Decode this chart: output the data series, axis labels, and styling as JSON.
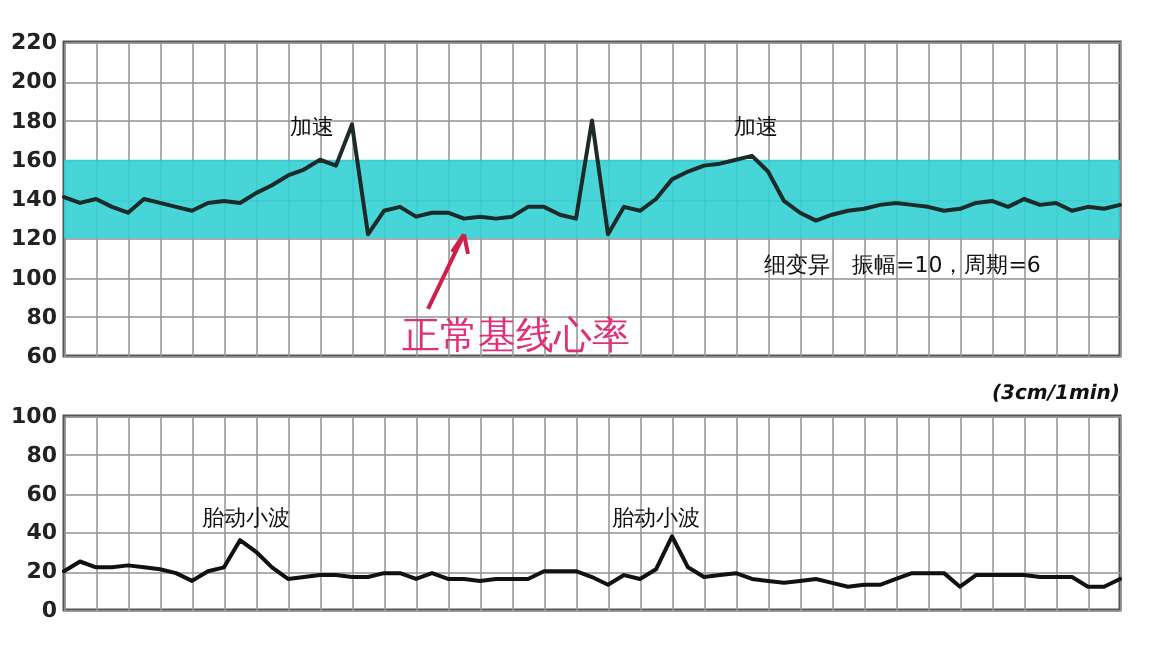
{
  "chart_data": [
    {
      "type": "line",
      "categories": [
        null,
        null,
        null,
        null,
        null,
        null,
        null,
        null,
        null,
        null,
        null,
        null,
        null,
        null,
        null,
        null,
        null,
        null,
        null,
        null,
        null,
        null,
        null,
        null,
        null,
        null,
        null,
        null,
        null,
        null,
        null,
        null,
        null,
        null,
        null,
        null,
        null,
        null,
        null,
        null,
        null,
        null,
        null,
        null,
        null,
        null,
        null,
        null,
        null,
        null,
        null,
        null,
        null,
        null,
        null,
        null,
        null,
        null,
        null,
        null,
        null,
        null,
        null,
        null,
        null,
        null,
        null
      ],
      "series": [
        {
          "color": "#1c2a2a",
          "values": [
            141,
            138,
            140,
            136,
            133,
            140,
            138,
            136,
            134,
            138,
            139,
            138,
            143,
            147,
            152,
            155,
            160,
            157,
            178,
            122,
            134,
            136,
            131,
            133,
            133,
            130,
            131,
            130,
            131,
            136,
            136,
            132,
            130,
            180,
            122,
            136,
            134,
            140,
            150,
            154,
            157,
            158,
            160,
            162,
            154,
            139,
            133,
            129,
            132,
            134,
            135,
            137,
            138,
            137,
            136,
            134,
            135,
            138,
            139,
            136,
            140,
            137,
            138,
            134,
            136,
            135,
            137
          ]
        }
      ],
      "ylim": [
        60,
        220
      ],
      "yticks": [
        60,
        80,
        100,
        120,
        140,
        160,
        180,
        200,
        220
      ],
      "grid": true,
      "tick_labels": "y",
      "bands": [
        {
          "axis": "y",
          "from": 120,
          "to": 160,
          "color": "#33d0d4"
        }
      ],
      "annotations": [
        "加速",
        "加速",
        "正常基线心率",
        "细变异　振幅=10，周期=6"
      ]
    },
    {
      "type": "line",
      "categories": [
        null,
        null,
        null,
        null,
        null,
        null,
        null,
        null,
        null,
        null,
        null,
        null,
        null,
        null,
        null,
        null,
        null,
        null,
        null,
        null,
        null,
        null,
        null,
        null,
        null,
        null,
        null,
        null,
        null,
        null,
        null,
        null,
        null,
        null,
        null,
        null,
        null,
        null,
        null,
        null,
        null,
        null,
        null,
        null,
        null,
        null,
        null,
        null,
        null,
        null,
        null,
        null,
        null,
        null,
        null,
        null,
        null,
        null,
        null,
        null,
        null,
        null,
        null,
        null,
        null,
        null,
        null
      ],
      "series": [
        {
          "color": "#111111",
          "values": [
            20,
            25,
            22,
            22,
            23,
            22,
            21,
            19,
            15,
            20,
            22,
            36,
            30,
            22,
            16,
            17,
            18,
            18,
            17,
            17,
            19,
            19,
            16,
            19,
            16,
            16,
            15,
            16,
            16,
            16,
            20,
            20,
            20,
            17,
            13,
            18,
            16,
            21,
            38,
            22,
            17,
            18,
            19,
            16,
            15,
            14,
            15,
            16,
            14,
            12,
            13,
            13,
            16,
            19,
            19,
            19,
            12,
            18,
            18,
            18,
            18,
            17,
            17,
            17,
            12,
            12,
            16
          ]
        }
      ],
      "ylim": [
        0,
        100
      ],
      "yticks": [
        0,
        20,
        40,
        60,
        80,
        100
      ],
      "grid": true,
      "tick_labels": "y",
      "annotations": [
        "(3cm/1min)",
        "胎动小波",
        "胎动小波"
      ]
    }
  ]
}
